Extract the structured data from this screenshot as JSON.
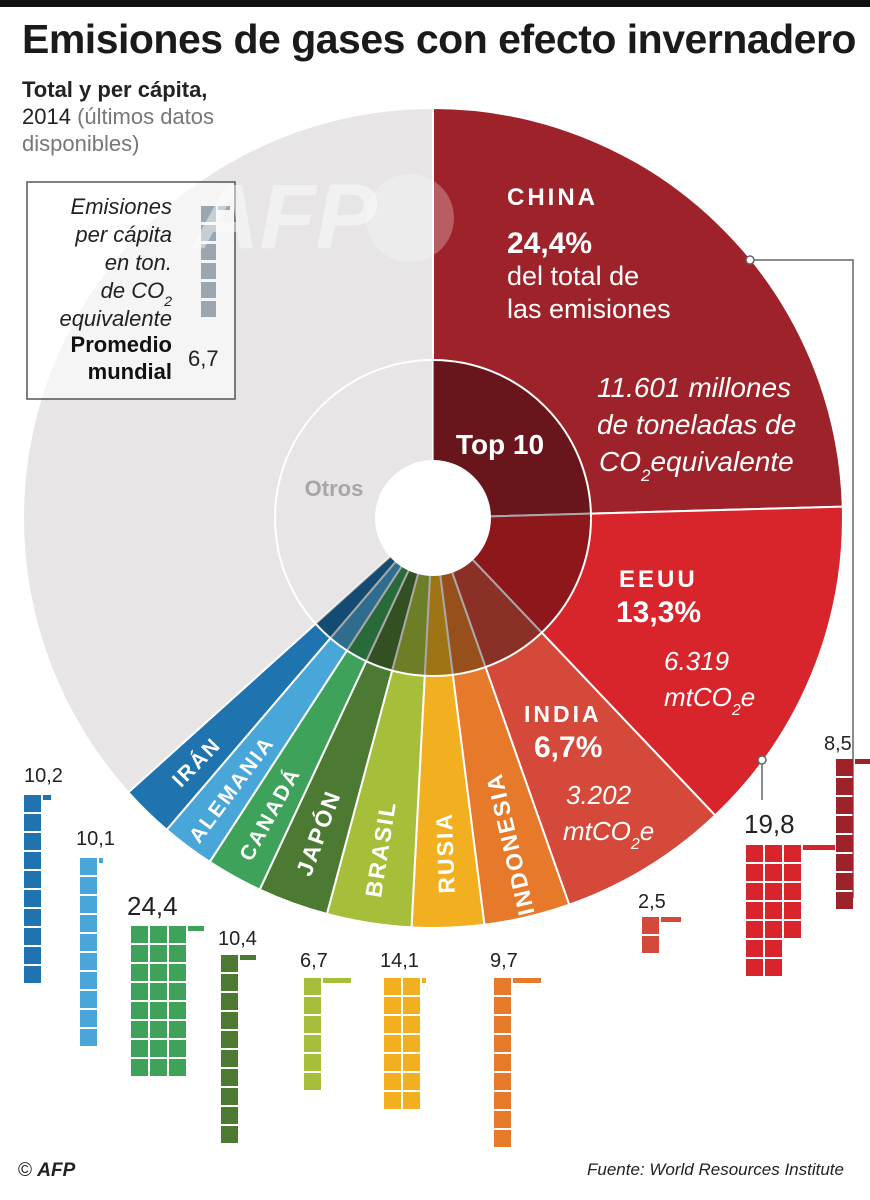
{
  "header": {
    "title": "Emisiones de gases con efecto invernadero",
    "subtitle_bold": "Total y per cápita,",
    "subtitle_year": "2014",
    "subtitle_note_1": "(últimos datos",
    "subtitle_note_2": "disponibles)"
  },
  "legend_box": {
    "lines": [
      "Emisiones",
      "per cápita",
      "en ton.",
      "de CO",
      "equivalente"
    ],
    "subscript": "2",
    "promedio_1": "Promedio",
    "promedio_2": "mundial",
    "promedio_value": "6,7"
  },
  "center": {
    "top10": "Top 10",
    "otros": "Otros"
  },
  "china_block": {
    "name": "CHINA",
    "pct": "24,4%",
    "line1": "del total de",
    "line2": "las emisiones",
    "amount1": "11.601 millones",
    "amount2": "de toneladas de",
    "amount3": "CO",
    "amount3_sub": "2",
    "amount3_rest": "equivalente"
  },
  "usa_block": {
    "name": "EEUU",
    "pct": "13,3%",
    "amount": "6.319",
    "unit": "mtCO",
    "unit_sub": "2",
    "unit_end": "e"
  },
  "india_block": {
    "name": "INDIA",
    "pct": "6,7%",
    "amount": "3.202",
    "unit": "mtCO",
    "unit_sub": "2",
    "unit_end": "e"
  },
  "chart_data": {
    "type": "pie",
    "title": "Emisiones de gases con efecto invernadero",
    "subtitle": "Total y per cápita, 2014 (últimos datos disponibles)",
    "total_share_shown": [
      {
        "name": "CHINA",
        "share_pct": 24.4,
        "emissions_mtco2e": 11601
      },
      {
        "name": "EEUU",
        "share_pct": 13.3,
        "emissions_mtco2e": 6319
      },
      {
        "name": "INDIA",
        "share_pct": 6.7,
        "emissions_mtco2e": 3202
      }
    ],
    "slices": [
      {
        "name": "CHINA",
        "color": "#9e2229",
        "share_pct": 24.4
      },
      {
        "name": "EEUU",
        "color": "#d8242b",
        "share_pct": 13.3
      },
      {
        "name": "INDIA",
        "color": "#d4493a",
        "share_pct": 6.7
      },
      {
        "name": "INDONESIA",
        "color": "#e6792a"
      },
      {
        "name": "RUSIA",
        "color": "#f2b020"
      },
      {
        "name": "BRASIL",
        "color": "#a6bf3a"
      },
      {
        "name": "JAPÓN",
        "color": "#4c7a32"
      },
      {
        "name": "CANADÁ",
        "color": "#3fa25a"
      },
      {
        "name": "ALEMANIA",
        "color": "#48a6d8"
      },
      {
        "name": "IRÁN",
        "color": "#1f73ae"
      },
      {
        "name": "Otros",
        "color": "#e7e5e5"
      }
    ],
    "per_capita": {
      "unit": "ton. de CO2 equivalente",
      "world_average": 6.7,
      "items": [
        {
          "name": "IRÁN",
          "label": "10,2",
          "value": 10.2,
          "color": "#1f73ae"
        },
        {
          "name": "ALEMANIA",
          "label": "10,1",
          "value": 10.1,
          "color": "#48a6d8"
        },
        {
          "name": "CANADÁ",
          "label": "24,4",
          "value": 24.4,
          "color": "#3fa25a"
        },
        {
          "name": "JAPÓN",
          "label": "10,4",
          "value": 10.4,
          "color": "#4c7a32"
        },
        {
          "name": "BRASIL",
          "label": "6,7",
          "value": 6.7,
          "color": "#a6bf3a"
        },
        {
          "name": "RUSIA",
          "label": "14,1",
          "value": 14.1,
          "color": "#f2b020"
        },
        {
          "name": "INDONESIA",
          "label": "9,7",
          "value": 9.7,
          "color": "#e6792a"
        },
        {
          "name": "INDIA",
          "label": "2,5",
          "value": 2.5,
          "color": "#d4493a"
        },
        {
          "name": "EEUU",
          "label": "19,8",
          "value": 19.8,
          "color": "#d8242b"
        },
        {
          "name": "CHINA",
          "label": "8,5",
          "value": 8.5,
          "color": "#9e2229"
        }
      ]
    }
  },
  "watermark": "AFP",
  "footer": {
    "copyright": "©",
    "agency": "AFP",
    "source": "Fuente: World Resources Institute"
  }
}
